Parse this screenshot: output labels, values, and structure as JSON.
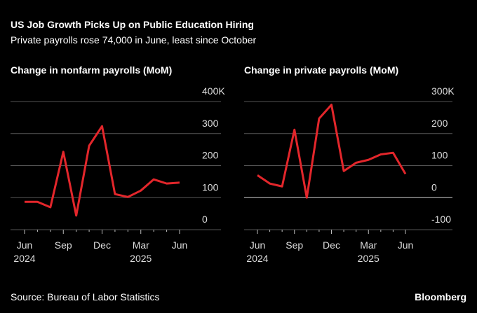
{
  "header": {
    "title": "US Job Growth Picks Up on Public Education Hiring",
    "subtitle": "Private payrolls rose 74,000 in June, least since October"
  },
  "chart_data": [
    {
      "type": "line",
      "title": "Change in nonfarm payrolls (MoM)",
      "categories": [
        "Jun",
        null,
        null,
        "Sep",
        null,
        null,
        "Dec",
        null,
        null,
        "Mar",
        null,
        null,
        "Jun"
      ],
      "years": [
        "2024",
        null,
        null,
        null,
        null,
        null,
        null,
        null,
        null,
        "2025",
        null,
        null,
        null
      ],
      "series": [
        {
          "name": "Nonfarm payrolls",
          "color": "#e3262b",
          "values": [
            87,
            87,
            70,
            243,
            44,
            262,
            323,
            111,
            102,
            122,
            157,
            144,
            147
          ]
        }
      ],
      "ylim": [
        0,
        400
      ],
      "yticks": [
        0,
        100,
        200,
        300,
        {
          "value": 400,
          "label": "400K"
        }
      ],
      "grid": true
    },
    {
      "type": "line",
      "title": "Change in private payrolls (MoM)",
      "categories": [
        "Jun",
        null,
        null,
        "Sep",
        null,
        null,
        "Dec",
        null,
        null,
        "Mar",
        null,
        null,
        "Jun"
      ],
      "years": [
        "2024",
        null,
        null,
        null,
        null,
        null,
        null,
        null,
        null,
        "2025",
        null,
        null,
        null
      ],
      "series": [
        {
          "name": "Private payrolls",
          "color": "#e3262b",
          "values": [
            70,
            44,
            35,
            212,
            0,
            247,
            290,
            83,
            109,
            118,
            135,
            140,
            74
          ]
        }
      ],
      "ylim": [
        -100,
        300
      ],
      "yticks": [
        -100,
        0,
        100,
        200,
        {
          "value": 300,
          "label": "300K"
        }
      ],
      "grid": true
    }
  ],
  "footer": {
    "source": "Source: Bureau of Labor Statistics",
    "brand": "Bloomberg"
  }
}
